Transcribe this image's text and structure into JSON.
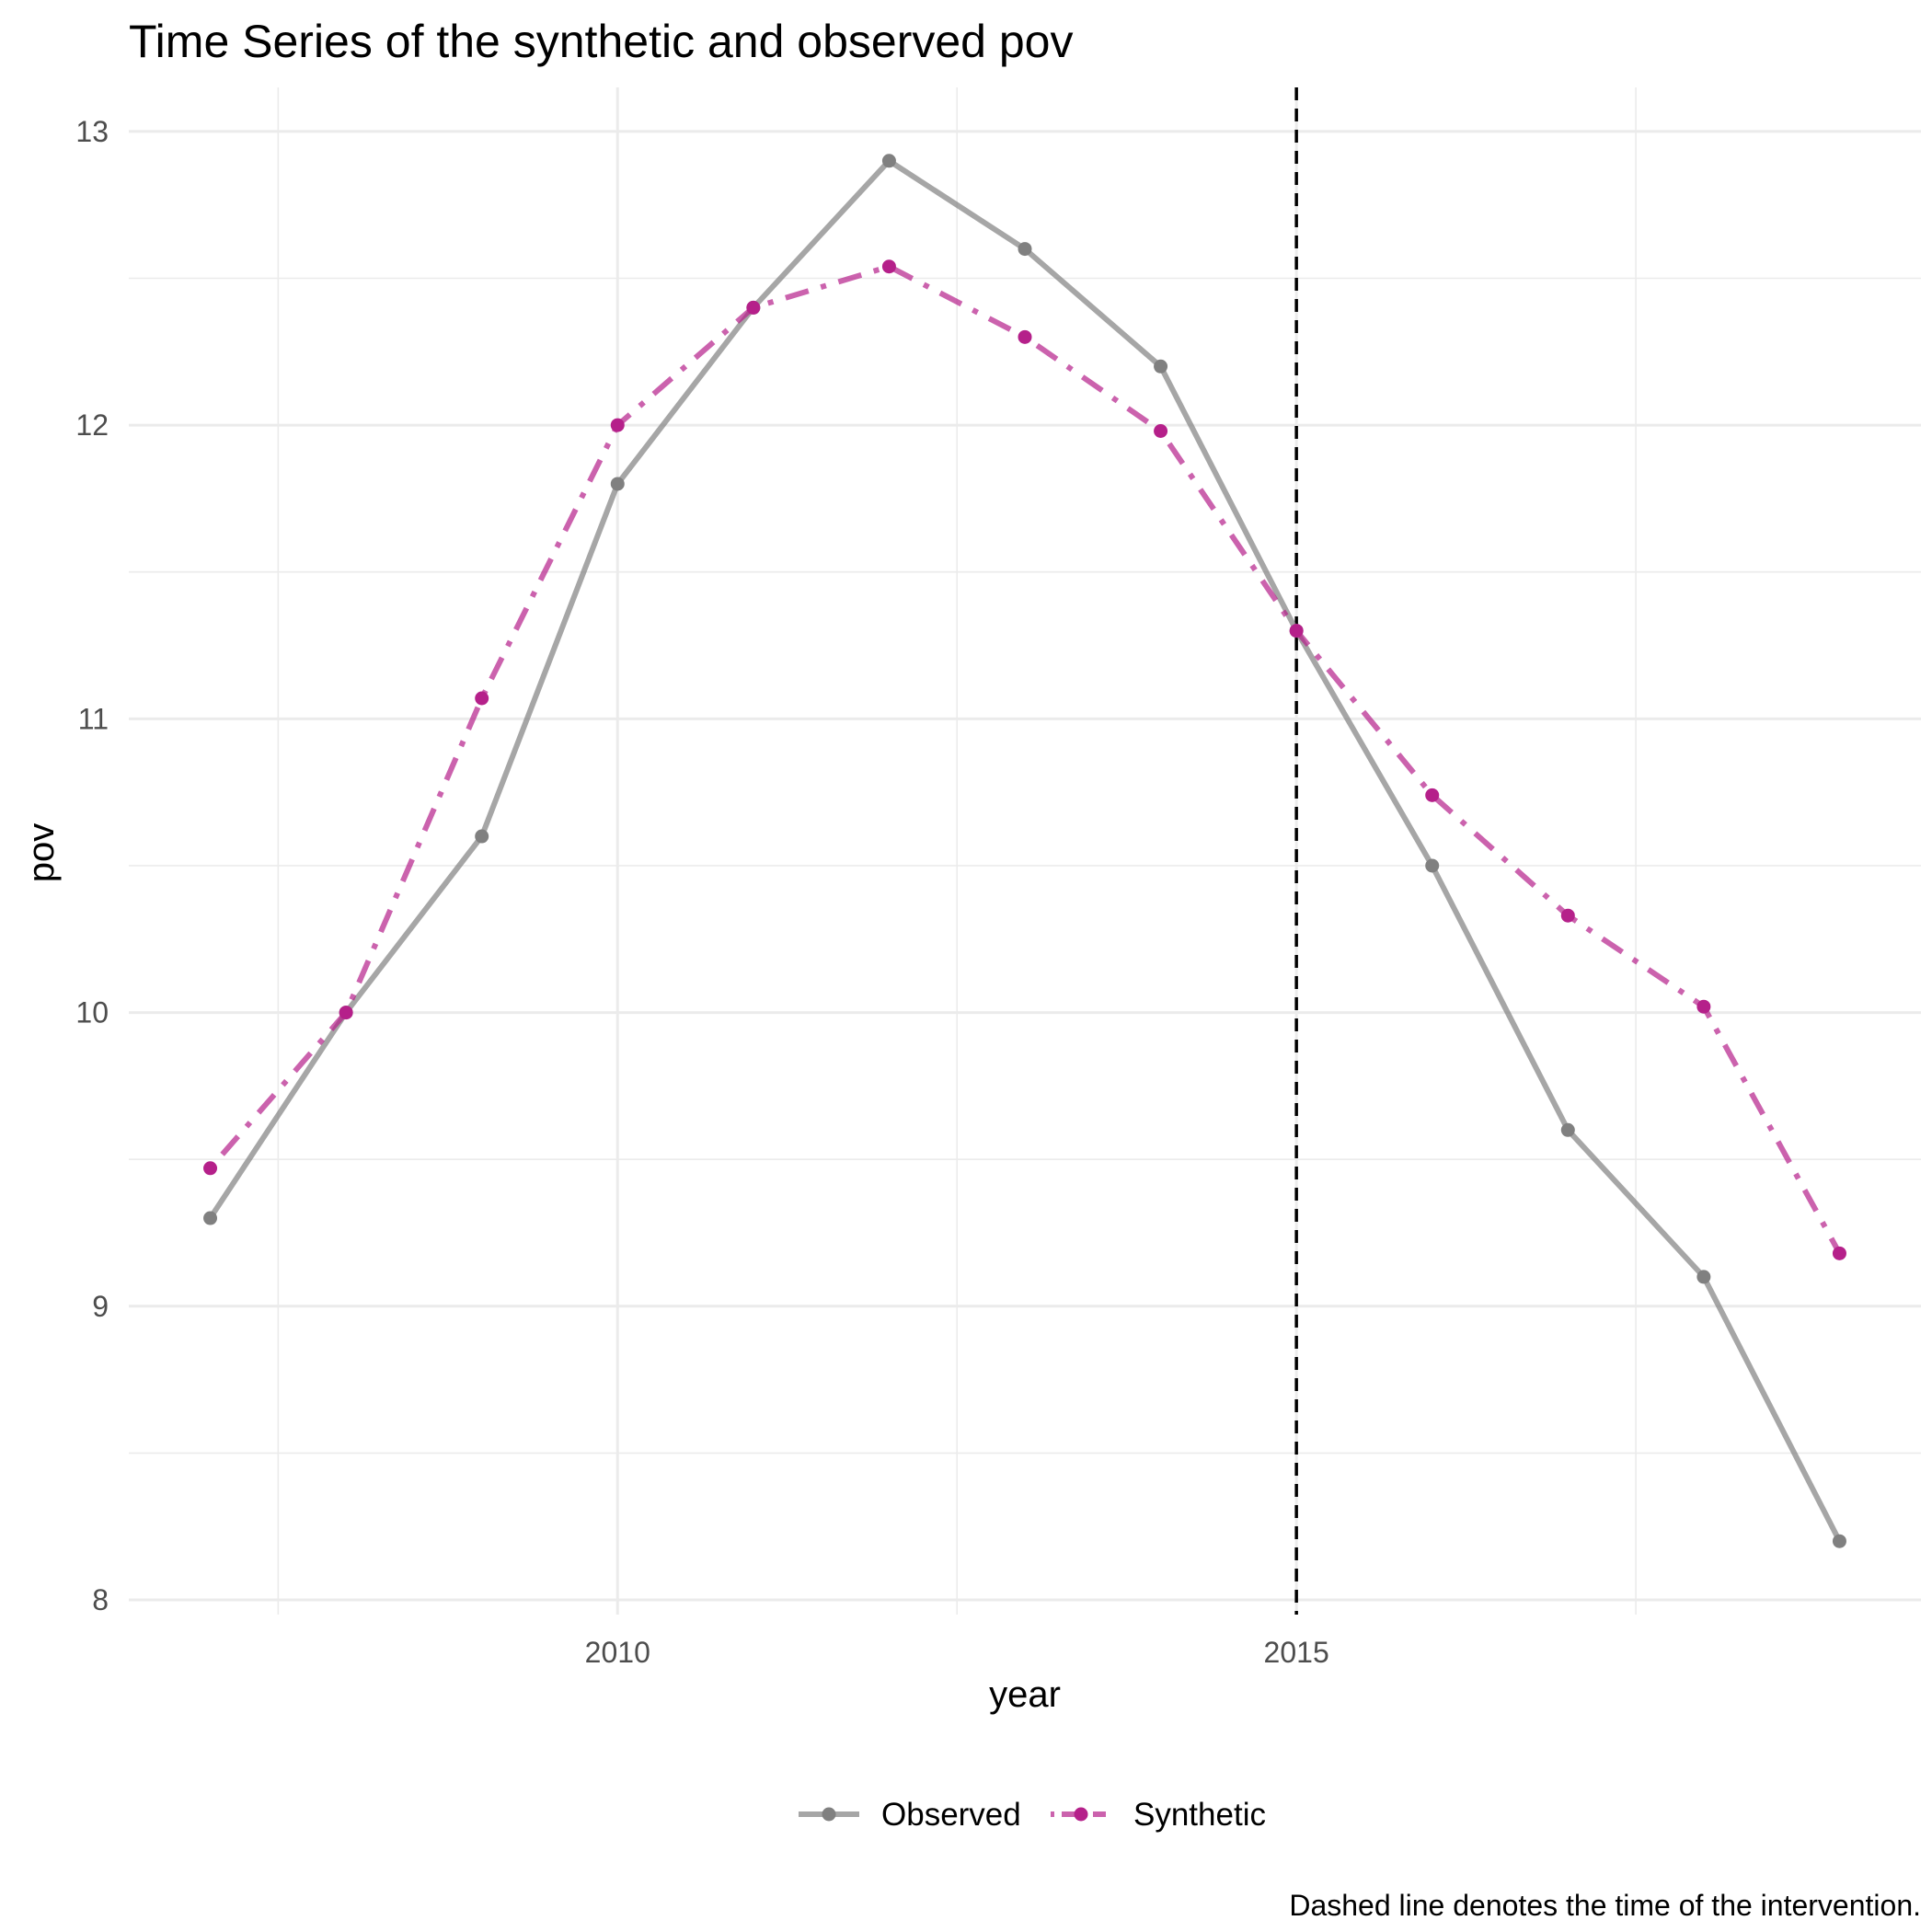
{
  "chart_data": {
    "type": "line",
    "title": "Time Series of the synthetic and observed pov",
    "xlabel": "year",
    "ylabel": "pov",
    "caption": "Dashed line denotes the time of the intervention.",
    "x_ticks": [
      "2010",
      "2015"
    ],
    "y_ticks": [
      "8",
      "9",
      "10",
      "11",
      "12",
      "13"
    ],
    "xlim": [
      2006.4,
      2019.6
    ],
    "ylim": [
      7.95,
      13.15
    ],
    "intervention_year": 2015,
    "grid": true,
    "legend_position": "bottom",
    "x": [
      2007,
      2008,
      2009,
      2010,
      2011,
      2012,
      2013,
      2014,
      2015,
      2016,
      2017,
      2018,
      2019
    ],
    "series": [
      {
        "name": "Observed",
        "color": "#808080",
        "line_style": "solid",
        "values": [
          9.3,
          10.0,
          10.6,
          11.8,
          12.4,
          12.9,
          12.6,
          12.2,
          11.3,
          10.5,
          9.6,
          9.1,
          8.2
        ]
      },
      {
        "name": "Synthetic",
        "color": "#b5208a",
        "line_style": "dotdash",
        "values": [
          9.47,
          10.0,
          11.07,
          12.0,
          12.4,
          12.54,
          12.3,
          11.98,
          11.3,
          10.74,
          10.33,
          10.02,
          9.18
        ]
      }
    ]
  }
}
